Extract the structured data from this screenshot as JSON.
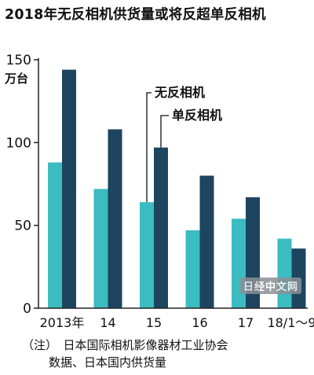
{
  "title": "2018年无反相机供货量或将反超单反相机",
  "chart_data": {
    "type": "bar",
    "unit": "万台",
    "categories": [
      "2013年",
      "14",
      "15",
      "16",
      "17",
      "18/1～9"
    ],
    "series": [
      {
        "name": "无反相机",
        "color": "#3bbcc0",
        "values": [
          88,
          72,
          64,
          47,
          54,
          42
        ]
      },
      {
        "name": "单反相机",
        "color": "#1e4560",
        "values": [
          144,
          108,
          97,
          80,
          67,
          36
        ]
      }
    ],
    "yticks": [
      0,
      50,
      100,
      150
    ],
    "ylim": [
      0,
      150
    ]
  },
  "note": {
    "line1": "（注）　日本国际相机影像器材工业协会",
    "line2": "数据、日本国内供货量"
  },
  "watermark": "日经中文网"
}
